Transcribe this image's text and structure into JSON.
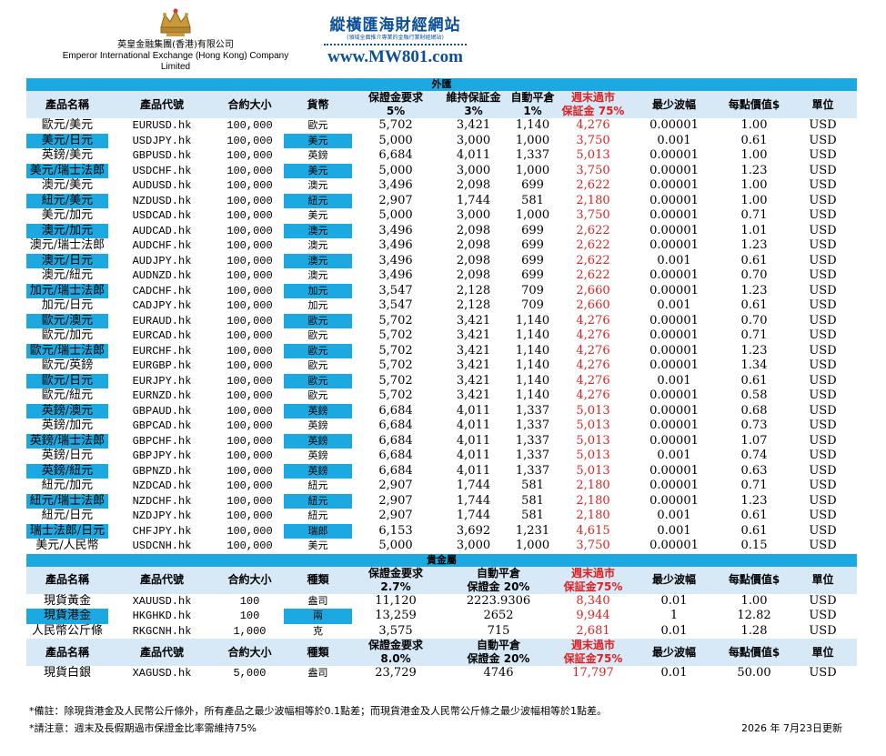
{
  "header": {
    "company_cn": "英皇金融集團(香港)有限公司",
    "company_en": "Emperor International Exchange (Hong Kong) Company Limited",
    "mw_title": "縱橫匯海財經網站",
    "mw_subtitle": "(領域全面推介專業的金融行業財經網站)",
    "mw_url": "www.MW801.com"
  },
  "forex": {
    "section_title": "外匯",
    "headers": {
      "name": "產品名稱",
      "code": "產品代號",
      "size": "合約大小",
      "currency": "貨幣",
      "margin": "保證金要求",
      "margin_pct": "5%",
      "maintain": "維持保証金",
      "maintain_pct": "3%",
      "auto": "自動平倉",
      "auto_pct": "1%",
      "weekend": "週末過市",
      "weekend2": "保証金 75%",
      "min_tick": "最少波幅",
      "value": "每點價值$",
      "unit": "單位"
    },
    "rows": [
      [
        "歐元/美元",
        "EURUSD.hk",
        "100,000",
        "歐元",
        "5,702",
        "3,421",
        "1,140",
        "4,276",
        "0.00001",
        "1.00",
        "USD"
      ],
      [
        "美元/日元",
        "USDJPY.hk",
        "100,000",
        "美元",
        "5,000",
        "3,000",
        "1,000",
        "3,750",
        "0.001",
        "0.61",
        "USD"
      ],
      [
        "英鎊/美元",
        "GBPUSD.hk",
        "100,000",
        "英鎊",
        "6,684",
        "4,011",
        "1,337",
        "5,013",
        "0.00001",
        "1.00",
        "USD"
      ],
      [
        "美元/瑞士法郎",
        "USDCHF.hk",
        "100,000",
        "美元",
        "5,000",
        "3,000",
        "1,000",
        "3,750",
        "0.00001",
        "1.23",
        "USD"
      ],
      [
        "澳元/美元",
        "AUDUSD.hk",
        "100,000",
        "澳元",
        "3,496",
        "2,098",
        "699",
        "2,622",
        "0.00001",
        "1.00",
        "USD"
      ],
      [
        "紐元/美元",
        "NZDUSD.hk",
        "100,000",
        "紐元",
        "2,907",
        "1,744",
        "581",
        "2,180",
        "0.00001",
        "1.00",
        "USD"
      ],
      [
        "美元/加元",
        "USDCAD.hk",
        "100,000",
        "美元",
        "5,000",
        "3,000",
        "1,000",
        "3,750",
        "0.00001",
        "0.71",
        "USD"
      ],
      [
        "澳元/加元",
        "AUDCAD.hk",
        "100,000",
        "澳元",
        "3,496",
        "2,098",
        "699",
        "2,622",
        "0.00001",
        "1.01",
        "USD"
      ],
      [
        "澳元/瑞士法郎",
        "AUDCHF.hk",
        "100,000",
        "澳元",
        "3,496",
        "2,098",
        "699",
        "2,622",
        "0.00001",
        "1.23",
        "USD"
      ],
      [
        "澳元/日元",
        "AUDJPY.hk",
        "100,000",
        "澳元",
        "3,496",
        "2,098",
        "699",
        "2,622",
        "0.001",
        "0.61",
        "USD"
      ],
      [
        "澳元/紐元",
        "AUDNZD.hk",
        "100,000",
        "澳元",
        "3,496",
        "2,098",
        "699",
        "2,622",
        "0.00001",
        "0.70",
        "USD"
      ],
      [
        "加元/瑞士法郎",
        "CADCHF.hk",
        "100,000",
        "加元",
        "3,547",
        "2,128",
        "709",
        "2,660",
        "0.00001",
        "1.23",
        "USD"
      ],
      [
        "加元/日元",
        "CADJPY.hk",
        "100,000",
        "加元",
        "3,547",
        "2,128",
        "709",
        "2,660",
        "0.001",
        "0.61",
        "USD"
      ],
      [
        "歐元/澳元",
        "EURAUD.hk",
        "100,000",
        "歐元",
        "5,702",
        "3,421",
        "1,140",
        "4,276",
        "0.00001",
        "0.70",
        "USD"
      ],
      [
        "歐元/加元",
        "EURCAD.hk",
        "100,000",
        "歐元",
        "5,702",
        "3,421",
        "1,140",
        "4,276",
        "0.00001",
        "0.71",
        "USD"
      ],
      [
        "歐元/瑞士法郎",
        "EURCHF.hk",
        "100,000",
        "歐元",
        "5,702",
        "3,421",
        "1,140",
        "4,276",
        "0.00001",
        "1.23",
        "USD"
      ],
      [
        "歐元/英鎊",
        "EURGBP.hk",
        "100,000",
        "歐元",
        "5,702",
        "3,421",
        "1,140",
        "4,276",
        "0.00001",
        "1.34",
        "USD"
      ],
      [
        "歐元/日元",
        "EURJPY.hk",
        "100,000",
        "歐元",
        "5,702",
        "3,421",
        "1,140",
        "4,276",
        "0.001",
        "0.61",
        "USD"
      ],
      [
        "歐元/紐元",
        "EURNZD.hk",
        "100,000",
        "歐元",
        "5,702",
        "3,421",
        "1,140",
        "4,276",
        "0.00001",
        "0.58",
        "USD"
      ],
      [
        "英鎊/澳元",
        "GBPAUD.hk",
        "100,000",
        "英鎊",
        "6,684",
        "4,011",
        "1,337",
        "5,013",
        "0.00001",
        "0.68",
        "USD"
      ],
      [
        "英鎊/加元",
        "GBPCAD.hk",
        "100,000",
        "英鎊",
        "6,684",
        "4,011",
        "1,337",
        "5,013",
        "0.00001",
        "0.73",
        "USD"
      ],
      [
        "英鎊/瑞士法郎",
        "GBPCHF.hk",
        "100,000",
        "英鎊",
        "6,684",
        "4,011",
        "1,337",
        "5,013",
        "0.00001",
        "1.07",
        "USD"
      ],
      [
        "英鎊/日元",
        "GBPJPY.hk",
        "100,000",
        "英鎊",
        "6,684",
        "4,011",
        "1,337",
        "5,013",
        "0.001",
        "0.74",
        "USD"
      ],
      [
        "英鎊/紐元",
        "GBPNZD.hk",
        "100,000",
        "英鎊",
        "6,684",
        "4,011",
        "1,337",
        "5,013",
        "0.00001",
        "0.63",
        "USD"
      ],
      [
        "紐元/加元",
        "NZDCAD.hk",
        "100,000",
        "紐元",
        "2,907",
        "1,744",
        "581",
        "2,180",
        "0.00001",
        "0.71",
        "USD"
      ],
      [
        "紐元/瑞士法郎",
        "NZDCHF.hk",
        "100,000",
        "紐元",
        "2,907",
        "1,744",
        "581",
        "2,180",
        "0.00001",
        "1.23",
        "USD"
      ],
      [
        "紐元/日元",
        "NZDJPY.hk",
        "100,000",
        "紐元",
        "2,907",
        "1,744",
        "581",
        "2,180",
        "0.001",
        "0.61",
        "USD"
      ],
      [
        "瑞士法郎/日元",
        "CHFJPY.hk",
        "100,000",
        "瑞郎",
        "6,153",
        "3,692",
        "1,231",
        "4,615",
        "0.001",
        "0.61",
        "USD"
      ],
      [
        "美元/人民幣",
        "USDCNH.hk",
        "100,000",
        "美元",
        "5,000",
        "3,000",
        "1,000",
        "3,750",
        "0.00001",
        "0.15",
        "USD"
      ]
    ]
  },
  "metals": {
    "section_title": "貴金屬",
    "headers": {
      "name": "產品名稱",
      "code": "產品代號",
      "size": "合約大小",
      "kind": "種類",
      "margin": "保證金要求",
      "margin_pct": "2.7%",
      "auto": "自動平倉",
      "auto_pct": "保證金 20%",
      "weekend": "週末過市",
      "weekend2": "保証金75%",
      "min_tick": "最少波幅",
      "value": "每點價值$",
      "unit": "單位"
    },
    "rows": [
      [
        "現貨黃金",
        "XAUUSD.hk",
        "100",
        "盎司",
        "11,120",
        "2223.9306",
        "8,340",
        "0.01",
        "1.00",
        "USD"
      ],
      [
        "現貨港金",
        "HKGHKD.hk",
        "100",
        "兩",
        "13,259",
        "2652",
        "9,944",
        "1",
        "12.82",
        "USD"
      ],
      [
        "人民幣公斤條",
        "RKGCNH.hk",
        "1,000",
        "克",
        "3,575",
        "715",
        "2,681",
        "0.01",
        "1.28",
        "USD"
      ]
    ],
    "silver_headers": {
      "name": "產品名稱",
      "code": "產品代號",
      "size": "合約大小",
      "kind": "種類",
      "margin": "保證金要求",
      "margin_pct": "8.0%",
      "auto": "自動平倉",
      "auto_pct": "保證金 20%",
      "weekend": "週末過市",
      "weekend2": "保証金75%",
      "min_tick": "最少波幅",
      "value": "每點價值$",
      "unit": "單位"
    },
    "silver_row": [
      "現貨白銀",
      "XAGUSD.hk",
      "5,000",
      "盎司",
      "23,729",
      "4746",
      "17,797",
      "0.01",
      "50.00",
      "USD"
    ]
  },
  "footer": {
    "note1": "*備註：除現貨港金及人民幣公斤條外，所有產品之最少波幅相等於0.1點差；而現貨港金及人民幣公斤條之最少波幅相等於1點差。",
    "note2": "*請注意：週末及長假期過市保證金比率需維持75%",
    "updated": "2026 年 7月23日更新"
  },
  "colors": {
    "section_bg": "#1ca8e0",
    "header_bg": "#d7e9f7",
    "weekend_red": "#e02020",
    "brand_blue": "#0b4f9a"
  }
}
